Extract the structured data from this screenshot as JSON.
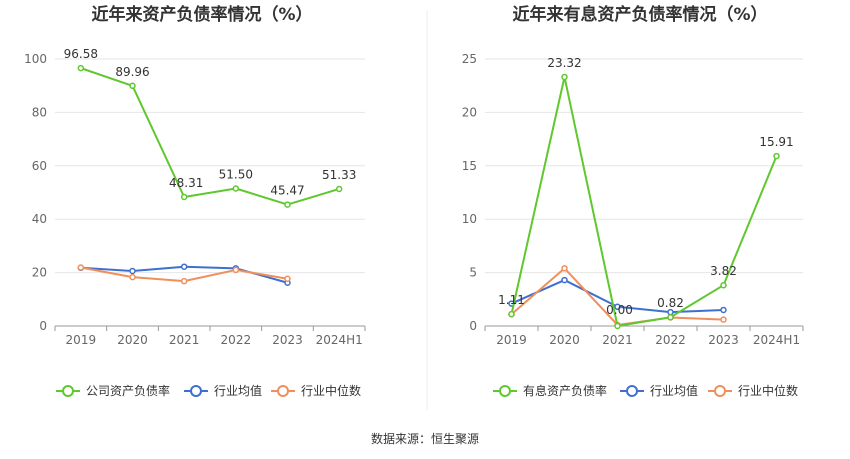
{
  "source_text": "数据来源：恒生聚源",
  "colors": {
    "company": "#5ec82e",
    "industry_avg": "#3e6fd1",
    "industry_median": "#ef8f5b",
    "grid": "#e6e6e6",
    "axis": "#999999"
  },
  "chart_data": [
    {
      "type": "line",
      "title": "近年来资产负债率情况（%）",
      "categories": [
        "2019",
        "2020",
        "2021",
        "2022",
        "2023",
        "2024H1"
      ],
      "ylim": [
        0,
        100
      ],
      "yticks": [
        0,
        20,
        40,
        60,
        80,
        100
      ],
      "grid": true,
      "legend_position": "bottom",
      "series": [
        {
          "name": "公司资产负债率",
          "color_key": "company",
          "values": [
            96.58,
            89.96,
            48.31,
            51.5,
            45.47,
            51.33
          ],
          "labels": [
            "96.58",
            "89.96",
            "48.31",
            "51.50",
            "45.47",
            "51.33"
          ]
        },
        {
          "name": "行业均值",
          "color_key": "industry_avg",
          "values": [
            21.8,
            20.6,
            22.2,
            21.6,
            16.2,
            null
          ]
        },
        {
          "name": "行业中位数",
          "color_key": "industry_median",
          "values": [
            21.9,
            18.3,
            16.8,
            21.0,
            17.7,
            null
          ]
        }
      ]
    },
    {
      "type": "line",
      "title": "近年来有息资产负债率情况（%）",
      "categories": [
        "2019",
        "2020",
        "2021",
        "2022",
        "2023",
        "2024H1"
      ],
      "ylim": [
        0,
        25
      ],
      "yticks": [
        0,
        5,
        10,
        15,
        20,
        25
      ],
      "grid": true,
      "legend_position": "bottom",
      "series": [
        {
          "name": "有息资产负债率",
          "color_key": "company",
          "values": [
            1.11,
            23.32,
            0.0,
            0.82,
            3.82,
            15.91
          ],
          "labels": [
            "1.11",
            "23.32",
            "0.00",
            "0.82",
            "3.82",
            "15.91"
          ]
        },
        {
          "name": "行业均值",
          "color_key": "industry_avg",
          "values": [
            2.1,
            4.3,
            1.8,
            1.3,
            1.5,
            null
          ]
        },
        {
          "name": "行业中位数",
          "color_key": "industry_median",
          "values": [
            1.1,
            5.4,
            0.1,
            0.8,
            0.6,
            null
          ]
        }
      ]
    }
  ]
}
